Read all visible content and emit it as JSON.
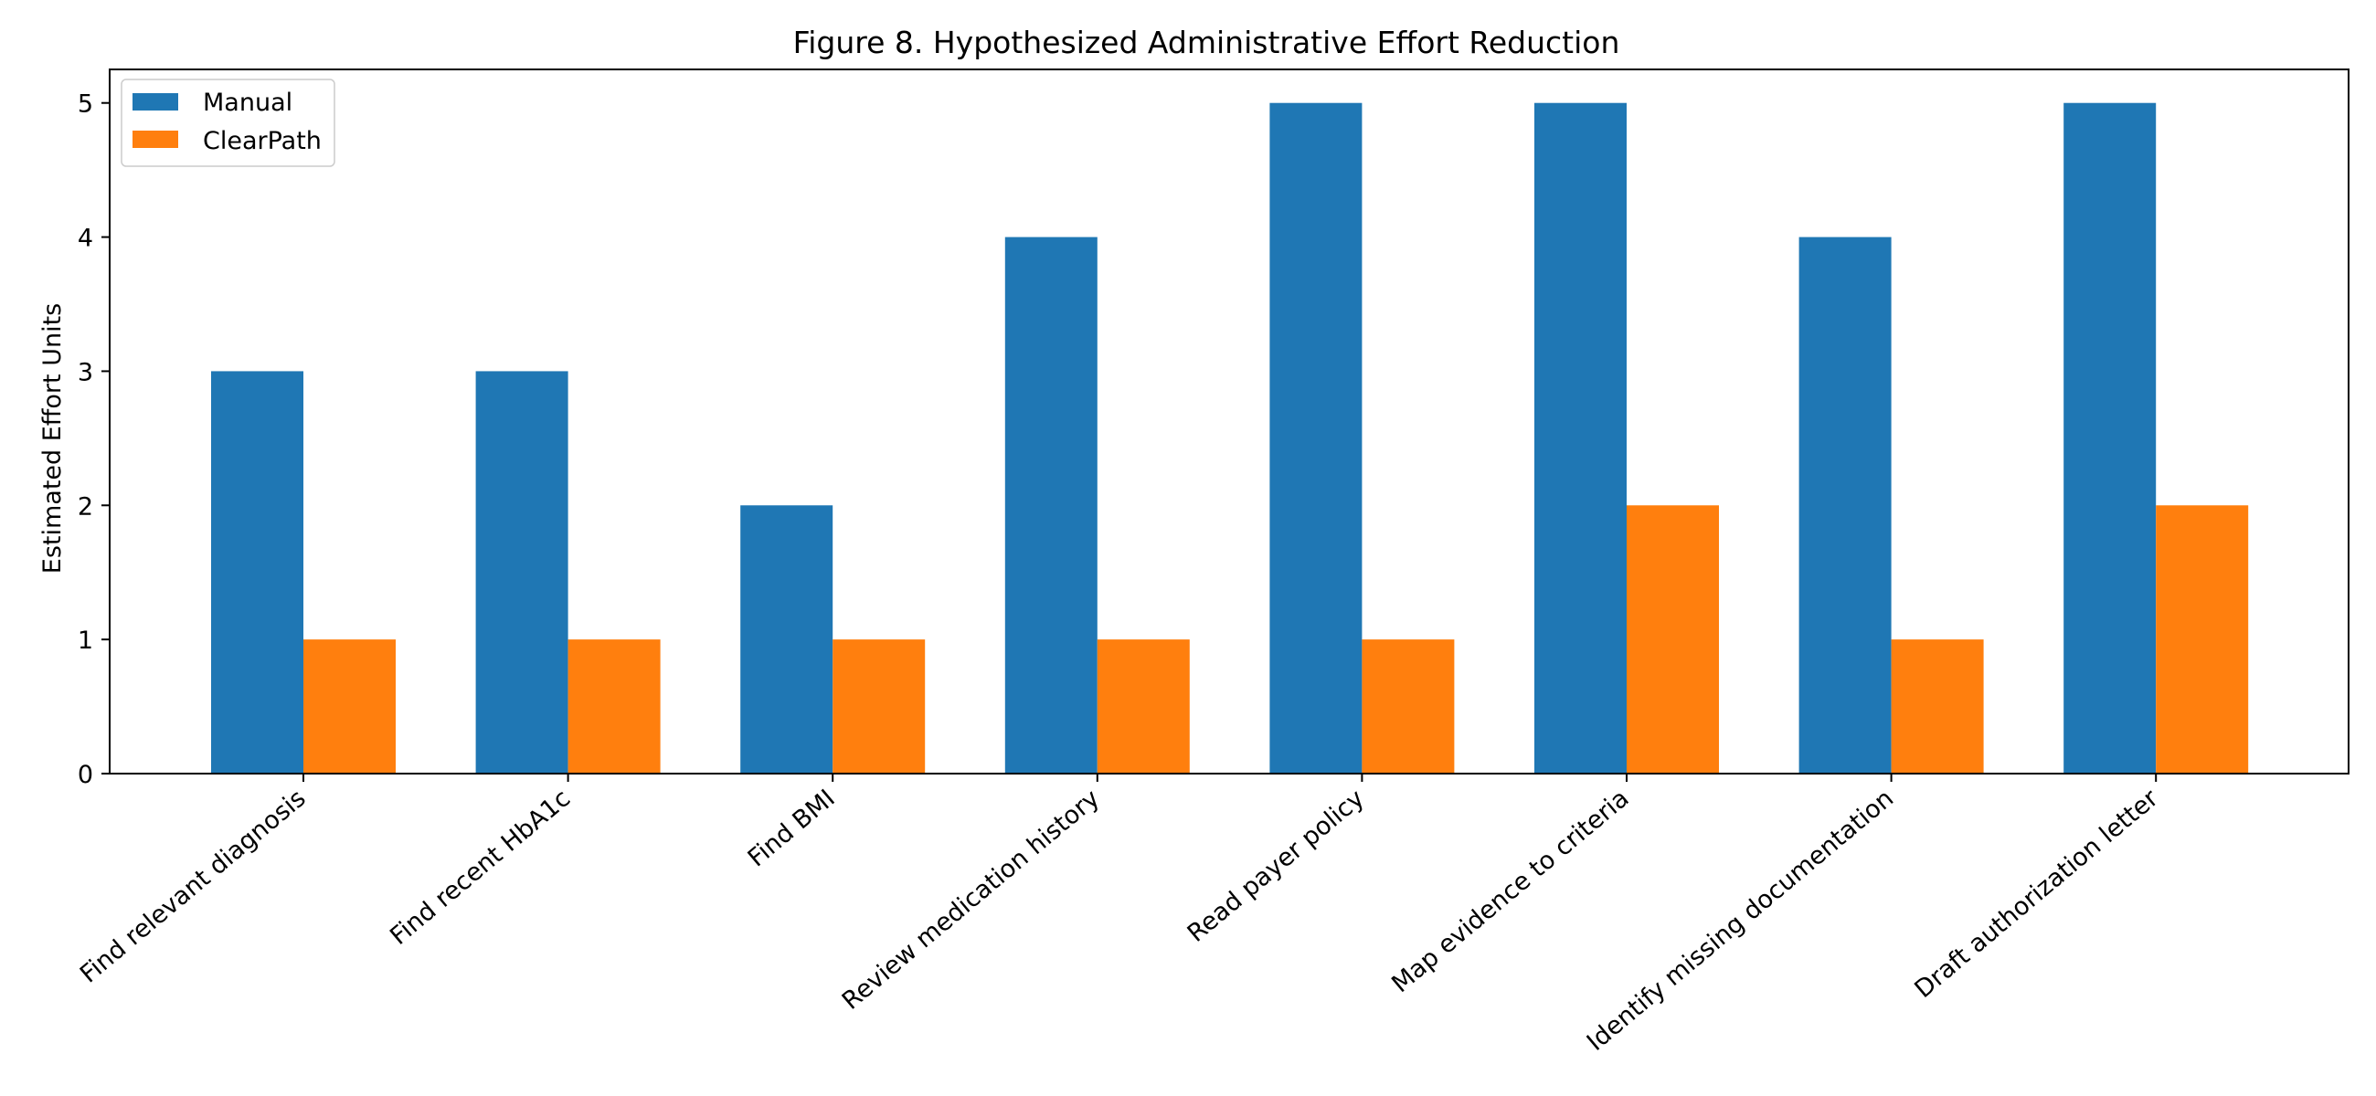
{
  "colors": {
    "manual": "#1f77b4",
    "clearpath": "#ff7f0e",
    "axis": "#000000",
    "background": "#ffffff"
  },
  "chart_data": {
    "type": "bar",
    "title": "Figure 8. Hypothesized Administrative Effort Reduction",
    "xlabel": "",
    "ylabel": "Estimated Effort Units",
    "categories": [
      "Find relevant diagnosis",
      "Find recent HbA1c",
      "Find BMI",
      "Review medication history",
      "Read payer policy",
      "Map evidence to criteria",
      "Identify missing documentation",
      "Draft authorization letter"
    ],
    "series": [
      {
        "name": "Manual",
        "values": [
          3,
          3,
          2,
          4,
          5,
          5,
          4,
          5
        ]
      },
      {
        "name": "ClearPath",
        "values": [
          1,
          1,
          1,
          1,
          1,
          2,
          1,
          2
        ]
      }
    ],
    "ylim": [
      0,
      5.25
    ],
    "yticks": [
      0,
      1,
      2,
      3,
      4,
      5
    ],
    "grid": false,
    "legend_position": "top-left"
  }
}
